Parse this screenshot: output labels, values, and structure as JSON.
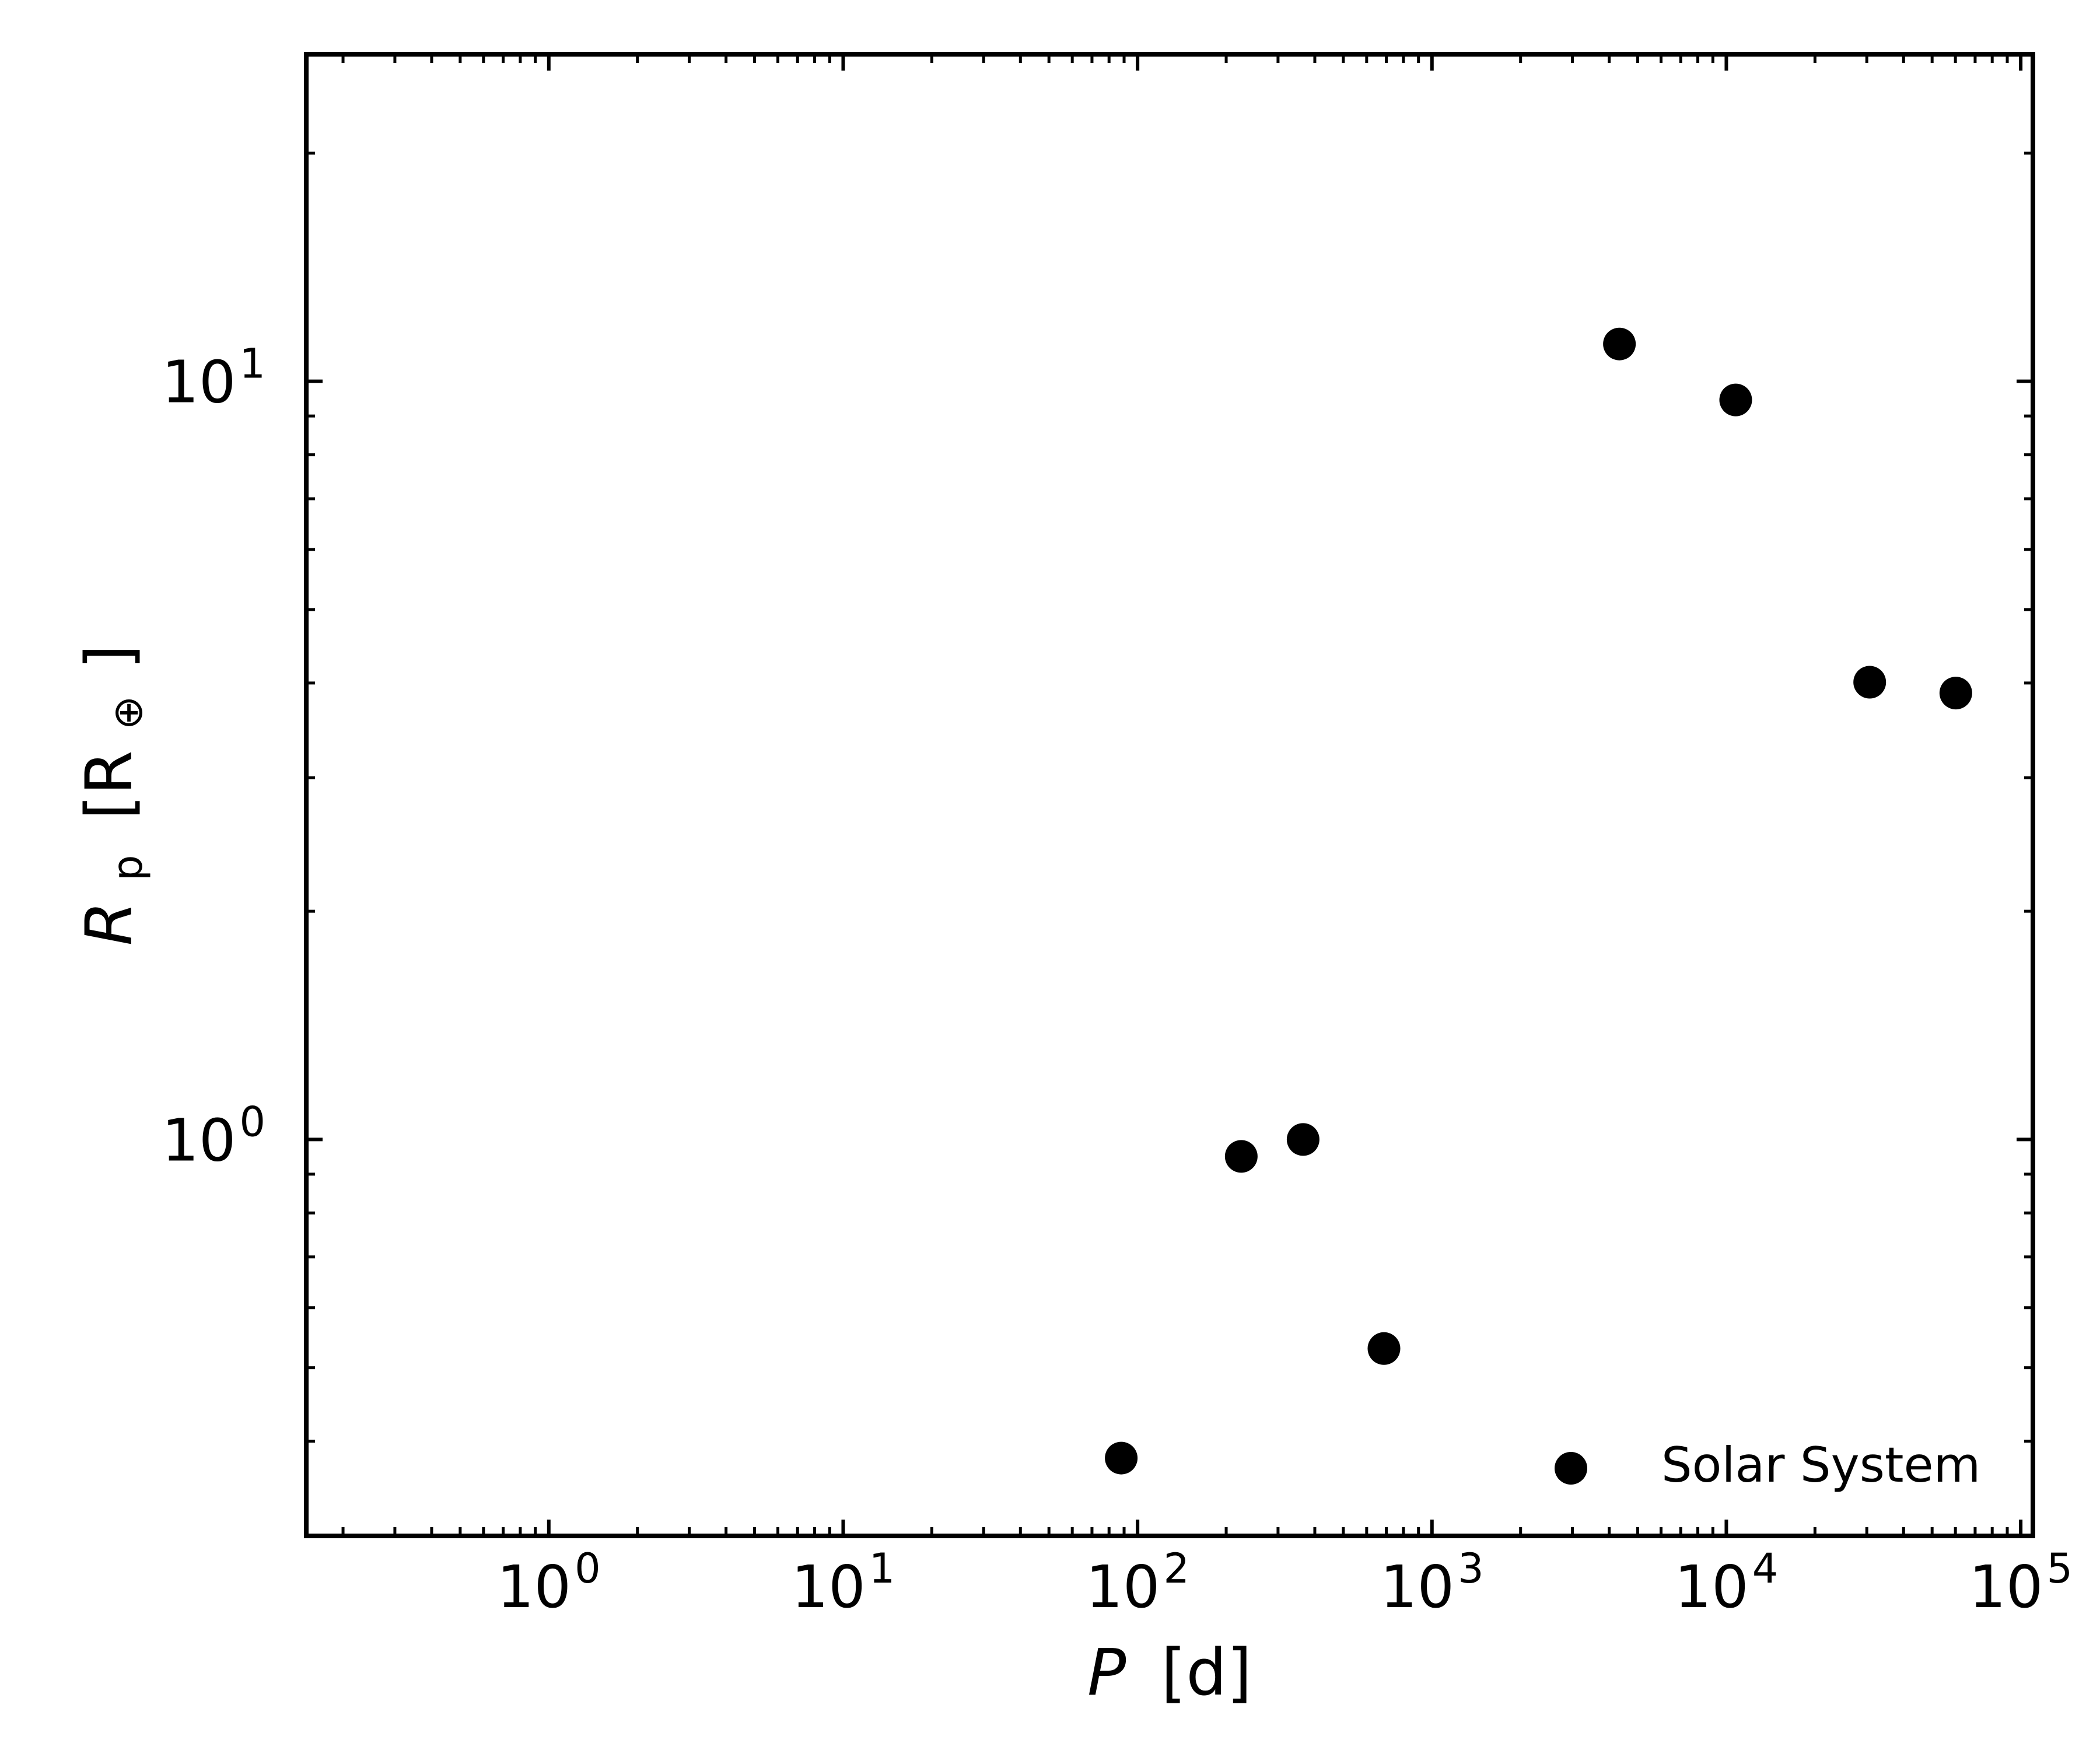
{
  "chart_data": {
    "type": "scatter",
    "x_scale": "log",
    "y_scale": "log",
    "xlim": [
      0.15,
      110000
    ],
    "ylim": [
      0.3,
      27
    ],
    "xlabel": {
      "var": "P",
      "unit": "[d]"
    },
    "ylabel": {
      "var": "R",
      "sub": "p",
      "unit_open": "[R",
      "unit_sub": "⊕",
      "unit_close": "]"
    },
    "x_ticks": [
      {
        "value": 1,
        "base": "10",
        "exp": "0"
      },
      {
        "value": 10,
        "base": "10",
        "exp": "1"
      },
      {
        "value": 100,
        "base": "10",
        "exp": "2"
      },
      {
        "value": 1000,
        "base": "10",
        "exp": "3"
      },
      {
        "value": 10000,
        "base": "10",
        "exp": "4"
      },
      {
        "value": 100000,
        "base": "10",
        "exp": "5"
      }
    ],
    "y_ticks": [
      {
        "value": 1,
        "base": "10",
        "exp": "0"
      },
      {
        "value": 10,
        "base": "10",
        "exp": "1"
      }
    ],
    "grid": false,
    "legend_position": "bottom-right",
    "series": [
      {
        "name": "Solar System",
        "color": "#000000",
        "marker": "circle",
        "points": [
          {
            "x": 88,
            "y": 0.38
          },
          {
            "x": 225,
            "y": 0.95
          },
          {
            "x": 365,
            "y": 1.0
          },
          {
            "x": 687,
            "y": 0.53
          },
          {
            "x": 4333,
            "y": 11.2
          },
          {
            "x": 10759,
            "y": 9.45
          },
          {
            "x": 30687,
            "y": 4.01
          },
          {
            "x": 60190,
            "y": 3.88
          }
        ]
      }
    ]
  },
  "colors": {
    "axes": "#000000",
    "marker": "#000000",
    "background": "#ffffff"
  }
}
